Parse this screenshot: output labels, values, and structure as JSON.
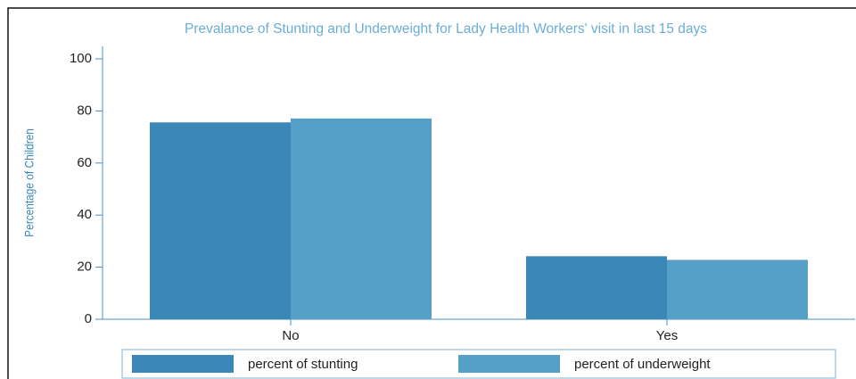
{
  "chart_data": {
    "type": "bar",
    "title": "Prevalance of Stunting and Underweight for Lady Health Workers' visit in last 15 days",
    "y_label": "Percentage of Children",
    "categories": [
      "No",
      "Yes"
    ],
    "series": [
      {
        "name": "percent of stunting",
        "color": "#3b88b8",
        "values": [
          75.6,
          24.2
        ]
      },
      {
        "name": "percent of underweight",
        "color": "#569fc7",
        "values": [
          77.1,
          22.8
        ]
      }
    ],
    "ylim": [
      0,
      100
    ],
    "yticks": [
      0,
      20,
      40,
      60,
      80,
      100
    ],
    "legend": "bottom"
  }
}
